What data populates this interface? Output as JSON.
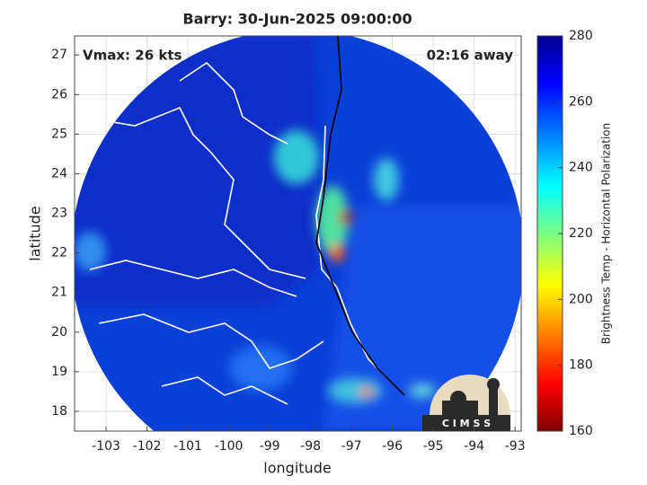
{
  "map": {
    "title": "Barry: 30-Jun-2025 09:00:00",
    "left_note": "Vmax: 26 kts",
    "right_note": "02:16 away",
    "xlabel": "longitude",
    "ylabel": "latitude",
    "xlim": [
      -103.77,
      -92.85
    ],
    "ylim": [
      17.5,
      27.48
    ],
    "xticks": [
      -103,
      -102,
      -101,
      -100,
      -99,
      -98,
      -97,
      -96,
      -95,
      -94,
      -93
    ],
    "yticks": [
      18,
      19,
      20,
      21,
      22,
      23,
      24,
      25,
      26,
      27
    ]
  },
  "colorbar": {
    "label": "Brightness Temp - Horizontal Polarization",
    "lim": [
      160,
      280
    ],
    "ticks": [
      160,
      180,
      200,
      220,
      240,
      260,
      280
    ]
  },
  "logo": "C I M S S"
}
